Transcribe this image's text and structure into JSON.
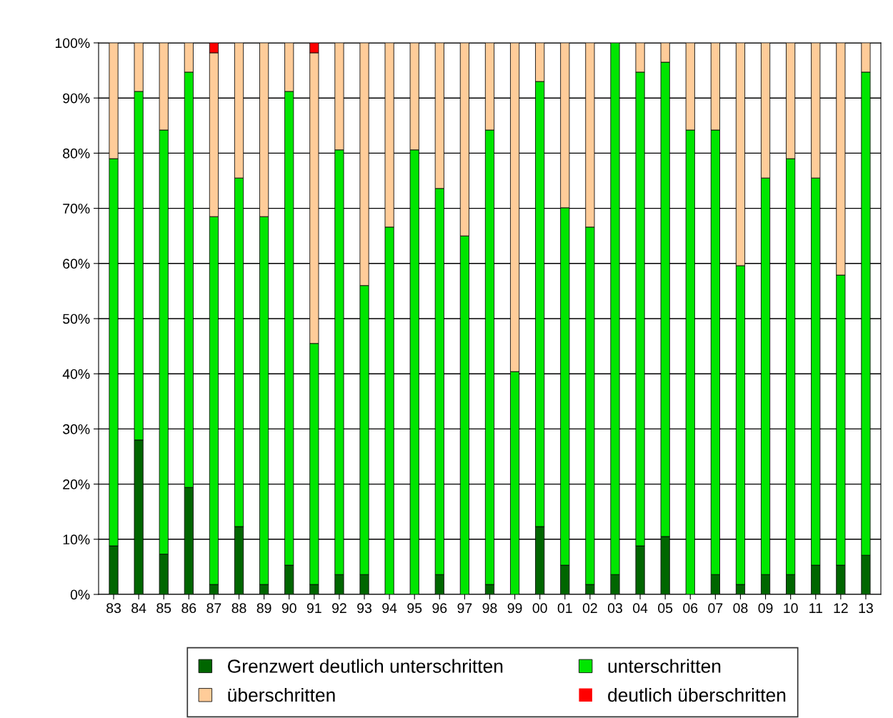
{
  "chart_data": {
    "type": "bar",
    "stacked": true,
    "categories": [
      "83",
      "84",
      "85",
      "86",
      "87",
      "88",
      "89",
      "90",
      "91",
      "92",
      "93",
      "94",
      "95",
      "96",
      "97",
      "98",
      "99",
      "00",
      "01",
      "02",
      "03",
      "04",
      "05",
      "06",
      "07",
      "08",
      "09",
      "10",
      "11",
      "12",
      "13"
    ],
    "series": [
      {
        "name": "Grenzwert deutlich unterschritten",
        "color": "#006600",
        "values": [
          8.8,
          28.0,
          7.3,
          19.4,
          1.8,
          12.3,
          1.8,
          5.3,
          1.8,
          3.6,
          3.6,
          0,
          0,
          3.6,
          0,
          1.8,
          0,
          12.3,
          5.3,
          1.8,
          3.6,
          8.8,
          10.5,
          0,
          3.6,
          1.8,
          3.6,
          3.6,
          5.3,
          5.3,
          7.1
        ]
      },
      {
        "name": "unterschritten",
        "color": "#00e600",
        "values": [
          70.2,
          63.2,
          76.9,
          75.3,
          66.7,
          63.2,
          66.7,
          85.9,
          43.7,
          77.0,
          52.4,
          66.6,
          80.6,
          70.0,
          65.0,
          82.4,
          40.4,
          80.7,
          64.8,
          64.8,
          96.4,
          85.9,
          86.0,
          84.2,
          80.6,
          57.8,
          71.9,
          75.4,
          70.2,
          52.6,
          87.6
        ]
      },
      {
        "name": "überschritten",
        "color": "#ffcc99",
        "values": [
          21.0,
          8.8,
          15.8,
          5.3,
          29.7,
          24.5,
          31.5,
          8.8,
          52.7,
          19.4,
          44.0,
          33.4,
          19.4,
          26.4,
          35.0,
          15.8,
          59.6,
          7.0,
          29.9,
          33.4,
          0,
          5.3,
          3.5,
          15.8,
          15.8,
          40.4,
          24.5,
          21.0,
          24.5,
          42.1,
          5.3
        ]
      },
      {
        "name": "deutlich überschritten",
        "color": "#ff0000",
        "values": [
          0,
          0,
          0,
          0,
          1.8,
          0,
          0,
          0,
          1.8,
          0,
          0,
          0,
          0,
          0,
          0,
          0,
          0,
          0,
          0,
          0,
          0,
          0,
          0,
          0,
          0,
          0,
          0,
          0,
          0,
          0,
          0
        ]
      }
    ],
    "ylim": [
      0,
      100
    ],
    "yticks": [
      {
        "value": 0,
        "label": "0%"
      },
      {
        "value": 10,
        "label": "10%"
      },
      {
        "value": 20,
        "label": "20%"
      },
      {
        "value": 30,
        "label": "30%"
      },
      {
        "value": 40,
        "label": "40%"
      },
      {
        "value": 50,
        "label": "50%"
      },
      {
        "value": 60,
        "label": "60%"
      },
      {
        "value": 70,
        "label": "70%"
      },
      {
        "value": 80,
        "label": "80%"
      },
      {
        "value": 90,
        "label": "90%"
      },
      {
        "value": 100,
        "label": "100%"
      }
    ],
    "grid": "y",
    "legend": "bottom"
  }
}
